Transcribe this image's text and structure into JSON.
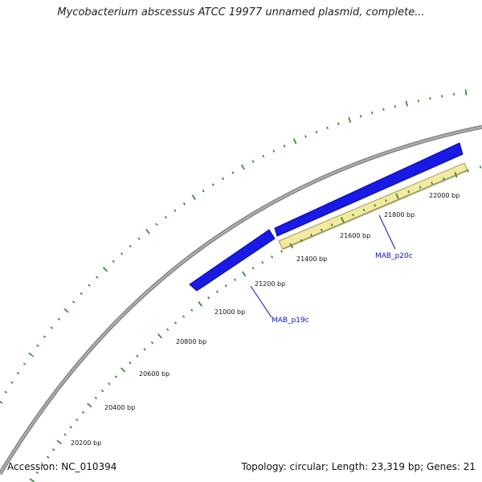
{
  "title": "Mycobacterium abscessus ATCC 19977 unnamed plasmid, complete...",
  "footer": {
    "accession": "Accession: NC_010394",
    "summary": "Topology: circular; Length: 23,319 bp; Genes: 21"
  },
  "ticks": [
    {
      "label": "20200 bp"
    },
    {
      "label": "20400 bp"
    },
    {
      "label": "20600 bp"
    },
    {
      "label": "20800 bp"
    },
    {
      "label": "21000 bp"
    },
    {
      "label": "21200 bp"
    },
    {
      "label": "21400 bp"
    },
    {
      "label": "21600 bp"
    },
    {
      "label": "21800 bp"
    },
    {
      "label": "22000 bp"
    }
  ],
  "genes": [
    {
      "name": "MAB_p19c",
      "strand": "complement",
      "color": "#1a1ae6"
    },
    {
      "name": "MAB_p20c",
      "strand": "complement",
      "color": "#1a1ae6"
    },
    {
      "name": "",
      "strand": "forward-outline",
      "color": "#f2eaa0"
    }
  ],
  "colors": {
    "backbone": "#8a8a8a",
    "tick": "#2e7d2e",
    "gene_label": "#1010c8",
    "cds_blue": "#1a1ae6",
    "cds_yellow": "#f2eaa0",
    "cds_yellow_edge": "#a09a60"
  }
}
